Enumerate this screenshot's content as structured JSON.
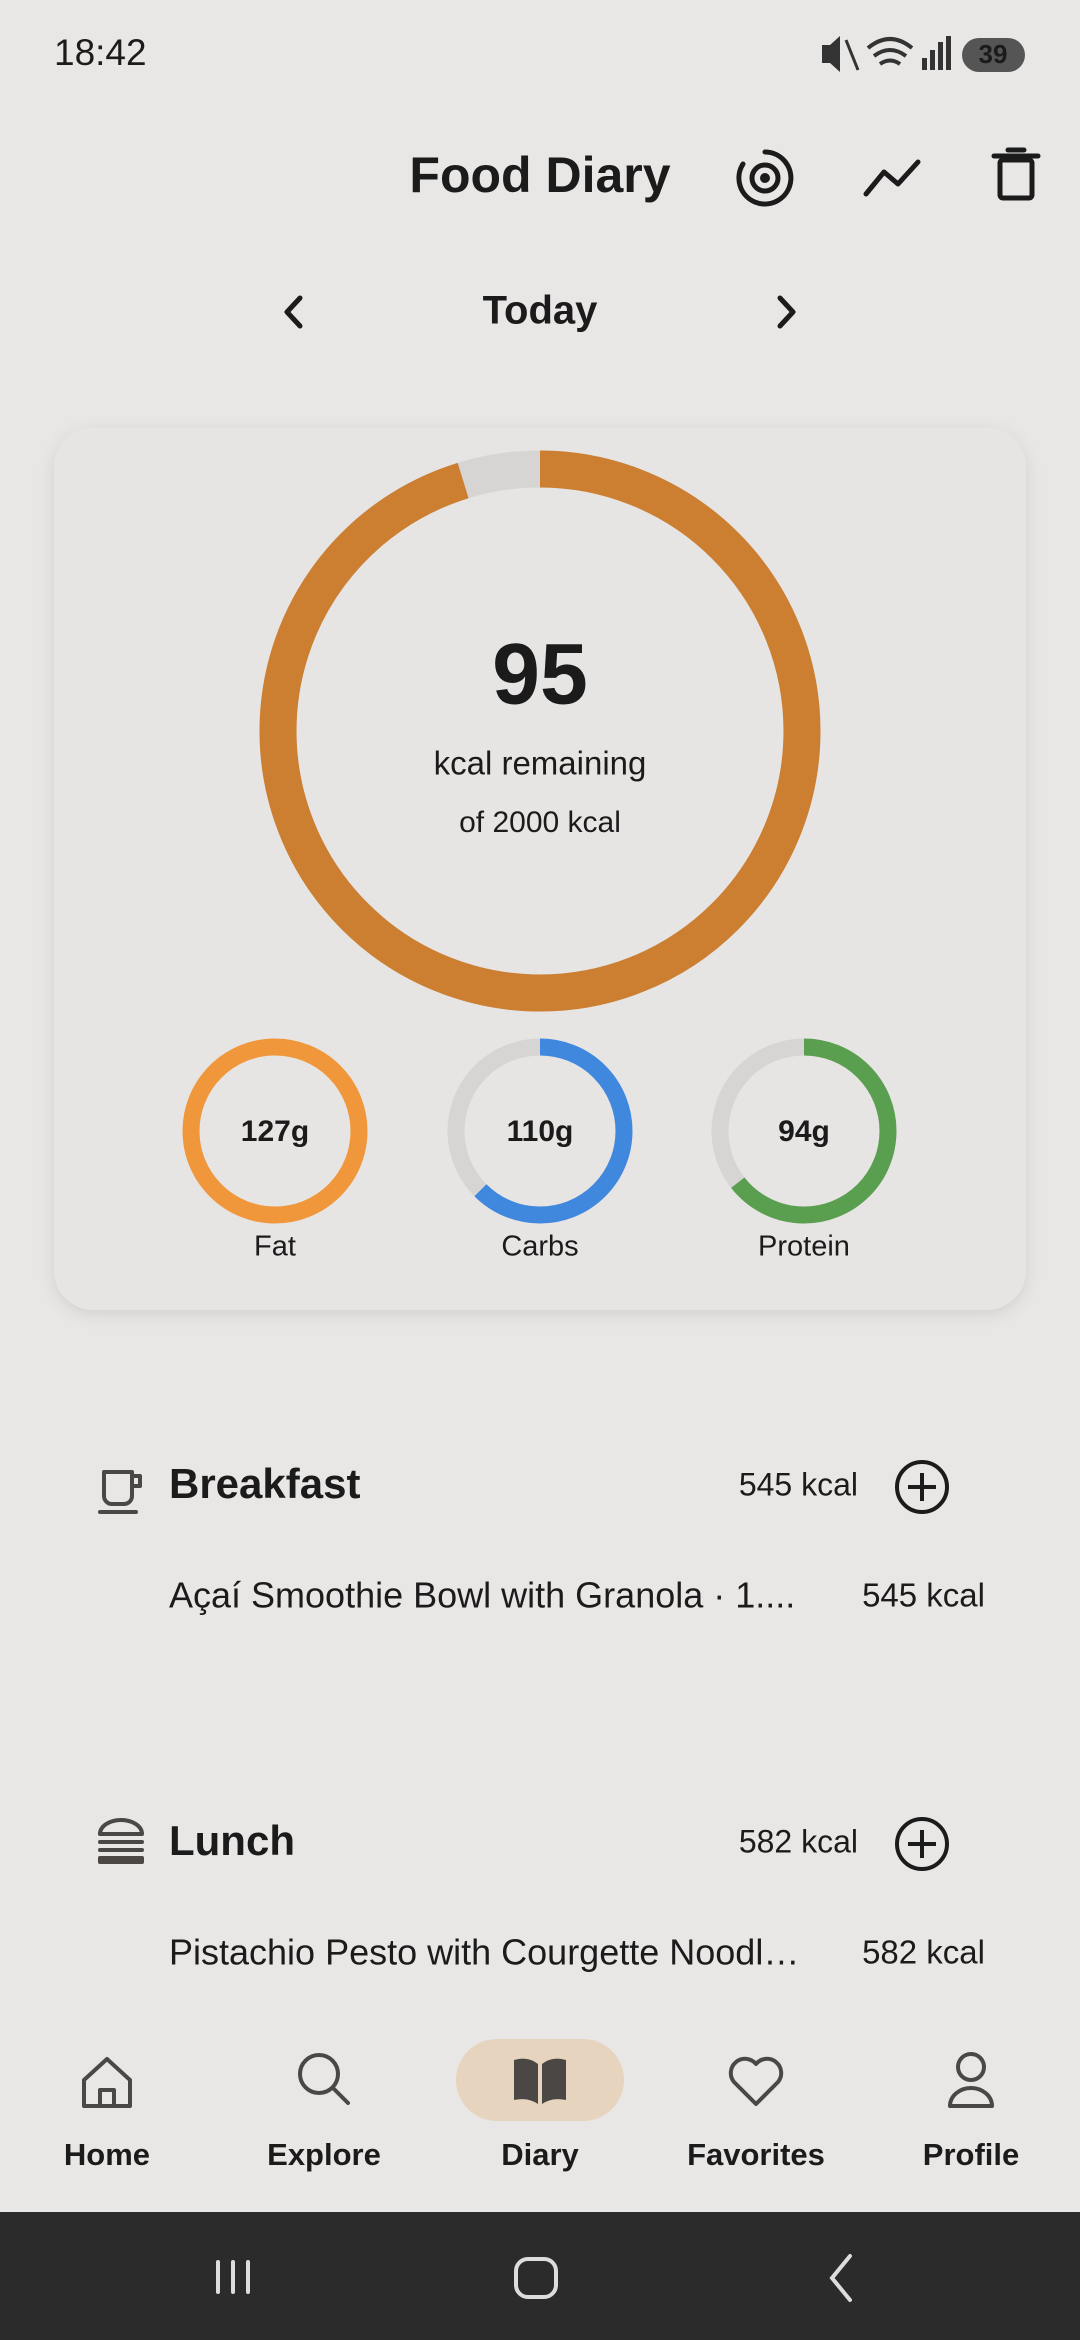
{
  "status_bar": {
    "time": "18:42",
    "battery": "39"
  },
  "header": {
    "title": "Food Diary"
  },
  "date_nav": {
    "label": "Today"
  },
  "summary": {
    "remaining": 95,
    "remaining_label": "kcal remaining",
    "goal_label": "of 2000 kcal"
  },
  "macros": [
    {
      "value": "127g",
      "label": "Fat"
    },
    {
      "value": "110g",
      "label": "Carbs"
    },
    {
      "value": "94g",
      "label": "Protein"
    }
  ],
  "meals": [
    {
      "name": "Breakfast",
      "kcal": "545 kcal",
      "items": [
        {
          "name": "Açaí Smoothie Bowl with Granola · 1....",
          "kcal": "545 kcal"
        }
      ]
    },
    {
      "name": "Lunch",
      "kcal": "582 kcal",
      "items": [
        {
          "name": "Pistachio Pesto with Courgette Noodl…",
          "kcal": "582 kcal"
        }
      ]
    }
  ],
  "nav": [
    "Home",
    "Explore",
    "Diary",
    "Favorites",
    "Profile"
  ]
}
